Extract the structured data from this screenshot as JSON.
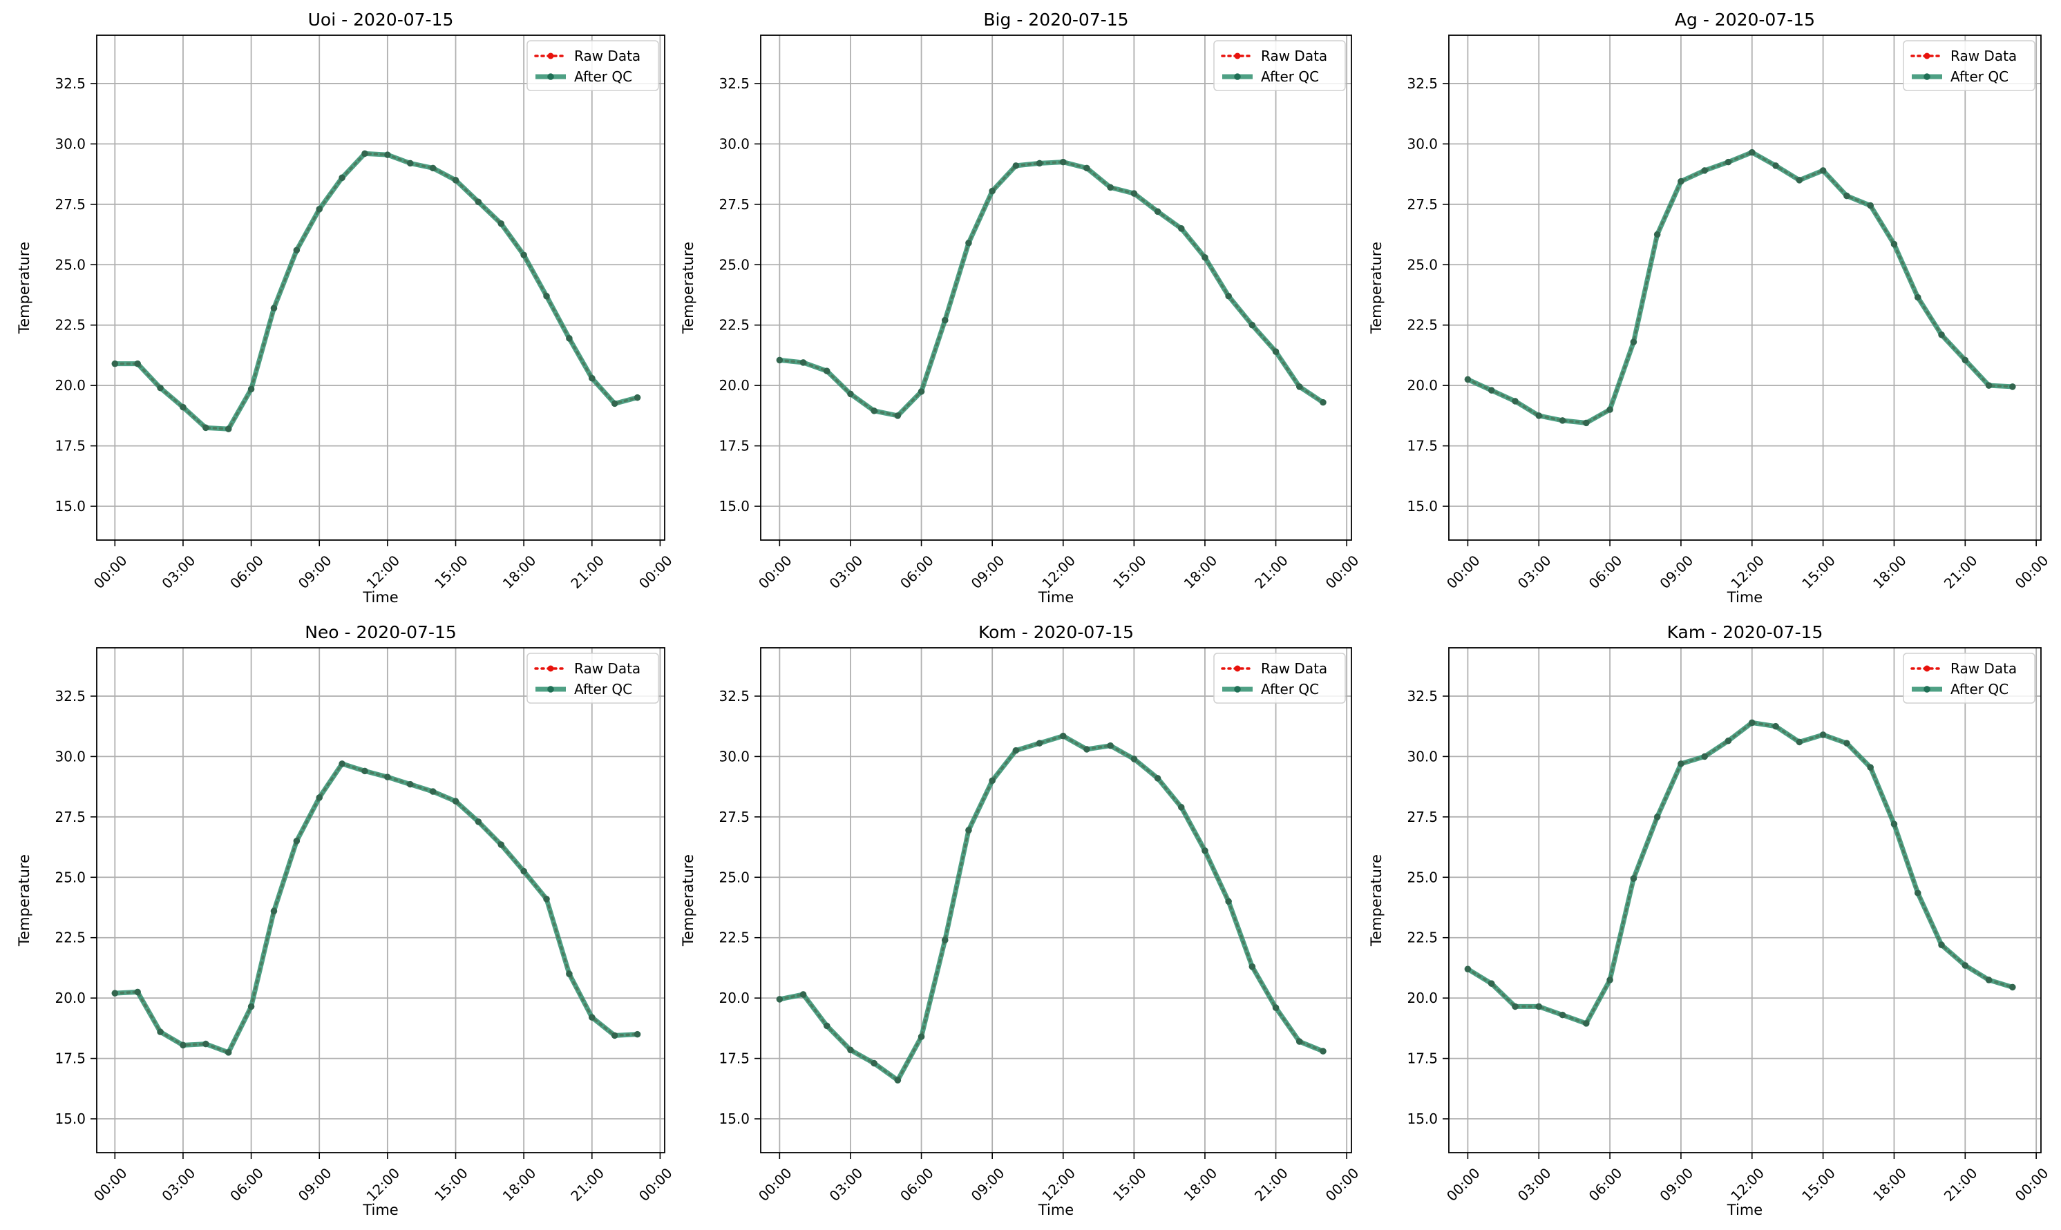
{
  "figure": {
    "legend_labels": [
      "Raw Data",
      "After QC"
    ],
    "colors": {
      "raw": "#e8120c",
      "qc": "#2f8f6e",
      "qc_marker": "#1f6f55",
      "grid": "#b0b0b0"
    }
  },
  "chart_data": [
    {
      "type": "line",
      "title": "Uoi - 2020-07-15",
      "xlabel": "Time",
      "ylabel": "Temperature",
      "x": [
        "00:00",
        "01:00",
        "02:00",
        "03:00",
        "04:00",
        "05:00",
        "06:00",
        "07:00",
        "08:00",
        "09:00",
        "10:00",
        "11:00",
        "12:00",
        "13:00",
        "14:00",
        "15:00",
        "16:00",
        "17:00",
        "18:00",
        "19:00",
        "20:00",
        "21:00",
        "22:00",
        "23:00"
      ],
      "x_tick_labels": [
        "00:00",
        "03:00",
        "06:00",
        "09:00",
        "12:00",
        "15:00",
        "18:00",
        "21:00",
        "00:00"
      ],
      "y_ticks": [
        15.0,
        17.5,
        20.0,
        22.5,
        25.0,
        27.5,
        30.0,
        32.5
      ],
      "ylim": [
        13.6,
        34.5
      ],
      "xlim_hours": [
        -0.8,
        24.2
      ],
      "grid": true,
      "legend_position": "top-right",
      "series": [
        {
          "name": "Raw Data",
          "values": [
            20.9,
            20.9,
            19.9,
            19.1,
            18.25,
            18.2,
            19.85,
            23.2,
            25.6,
            27.3,
            28.6,
            29.6,
            29.55,
            29.2,
            29.0,
            28.5,
            27.6,
            26.7,
            25.4,
            23.7,
            21.95,
            20.3,
            19.25,
            19.5
          ]
        },
        {
          "name": "After QC",
          "values": [
            20.9,
            20.9,
            19.9,
            19.1,
            18.25,
            18.2,
            19.85,
            23.2,
            25.6,
            27.3,
            28.6,
            29.6,
            29.55,
            29.2,
            29.0,
            28.5,
            27.6,
            26.7,
            25.4,
            23.7,
            21.95,
            20.3,
            19.25,
            19.5
          ]
        }
      ]
    },
    {
      "type": "line",
      "title": "Big - 2020-07-15",
      "xlabel": "Time",
      "ylabel": "Temperature",
      "x": [
        "00:00",
        "01:00",
        "02:00",
        "03:00",
        "04:00",
        "05:00",
        "06:00",
        "07:00",
        "08:00",
        "09:00",
        "10:00",
        "11:00",
        "12:00",
        "13:00",
        "14:00",
        "15:00",
        "16:00",
        "17:00",
        "18:00",
        "19:00",
        "20:00",
        "21:00",
        "22:00",
        "23:00"
      ],
      "x_tick_labels": [
        "00:00",
        "03:00",
        "06:00",
        "09:00",
        "12:00",
        "15:00",
        "18:00",
        "21:00",
        "00:00"
      ],
      "y_ticks": [
        15.0,
        17.5,
        20.0,
        22.5,
        25.0,
        27.5,
        30.0,
        32.5
      ],
      "ylim": [
        13.6,
        34.5
      ],
      "xlim_hours": [
        -0.8,
        24.2
      ],
      "grid": true,
      "legend_position": "top-right",
      "series": [
        {
          "name": "Raw Data",
          "values": [
            21.05,
            20.95,
            20.6,
            19.65,
            18.95,
            18.75,
            19.75,
            22.7,
            25.9,
            28.05,
            29.1,
            29.2,
            29.25,
            29.0,
            28.2,
            27.95,
            27.2,
            26.5,
            25.3,
            23.7,
            22.5,
            21.4,
            19.95,
            19.3
          ]
        },
        {
          "name": "After QC",
          "values": [
            21.05,
            20.95,
            20.6,
            19.65,
            18.95,
            18.75,
            19.75,
            22.7,
            25.9,
            28.05,
            29.1,
            29.2,
            29.25,
            29.0,
            28.2,
            27.95,
            27.2,
            26.5,
            25.3,
            23.7,
            22.5,
            21.4,
            19.95,
            19.3
          ]
        }
      ]
    },
    {
      "type": "line",
      "title": "Ag - 2020-07-15",
      "xlabel": "Time",
      "ylabel": "Temperature",
      "x": [
        "00:00",
        "01:00",
        "02:00",
        "03:00",
        "04:00",
        "05:00",
        "06:00",
        "07:00",
        "08:00",
        "09:00",
        "10:00",
        "11:00",
        "12:00",
        "13:00",
        "14:00",
        "15:00",
        "16:00",
        "17:00",
        "18:00",
        "19:00",
        "20:00",
        "21:00",
        "22:00",
        "23:00"
      ],
      "x_tick_labels": [
        "00:00",
        "03:00",
        "06:00",
        "09:00",
        "12:00",
        "15:00",
        "18:00",
        "21:00",
        "00:00"
      ],
      "y_ticks": [
        15.0,
        17.5,
        20.0,
        22.5,
        25.0,
        27.5,
        30.0,
        32.5
      ],
      "ylim": [
        13.6,
        34.5
      ],
      "xlim_hours": [
        -0.8,
        24.2
      ],
      "grid": true,
      "legend_position": "top-right",
      "series": [
        {
          "name": "Raw Data",
          "values": [
            20.25,
            19.8,
            19.35,
            18.75,
            18.55,
            18.45,
            19.0,
            21.8,
            26.25,
            28.45,
            28.9,
            29.25,
            29.65,
            29.1,
            28.5,
            28.9,
            27.85,
            27.45,
            25.85,
            23.65,
            22.1,
            21.05,
            20.0,
            19.95
          ]
        },
        {
          "name": "After QC",
          "values": [
            20.25,
            19.8,
            19.35,
            18.75,
            18.55,
            18.45,
            19.0,
            21.8,
            26.25,
            28.45,
            28.9,
            29.25,
            29.65,
            29.1,
            28.5,
            28.9,
            27.85,
            27.45,
            25.85,
            23.65,
            22.1,
            21.05,
            20.0,
            19.95
          ]
        }
      ]
    },
    {
      "type": "line",
      "title": "Neo - 2020-07-15",
      "xlabel": "Time",
      "ylabel": "Temperature",
      "x": [
        "00:00",
        "01:00",
        "02:00",
        "03:00",
        "04:00",
        "05:00",
        "06:00",
        "07:00",
        "08:00",
        "09:00",
        "10:00",
        "11:00",
        "12:00",
        "13:00",
        "14:00",
        "15:00",
        "16:00",
        "17:00",
        "18:00",
        "19:00",
        "20:00",
        "21:00",
        "22:00",
        "23:00"
      ],
      "x_tick_labels": [
        "00:00",
        "03:00",
        "06:00",
        "09:00",
        "12:00",
        "15:00",
        "18:00",
        "21:00",
        "00:00"
      ],
      "y_ticks": [
        15.0,
        17.5,
        20.0,
        22.5,
        25.0,
        27.5,
        30.0,
        32.5
      ],
      "ylim": [
        13.6,
        34.5
      ],
      "xlim_hours": [
        -0.8,
        24.2
      ],
      "grid": true,
      "legend_position": "top-right",
      "series": [
        {
          "name": "Raw Data",
          "values": [
            20.2,
            20.25,
            18.6,
            18.05,
            18.1,
            17.75,
            19.65,
            23.6,
            26.5,
            28.3,
            29.7,
            29.4,
            29.15,
            28.85,
            28.55,
            28.15,
            27.3,
            26.35,
            25.25,
            24.1,
            21.0,
            19.2,
            18.45,
            18.5
          ]
        },
        {
          "name": "After QC",
          "values": [
            20.2,
            20.25,
            18.6,
            18.05,
            18.1,
            17.75,
            19.65,
            23.6,
            26.5,
            28.3,
            29.7,
            29.4,
            29.15,
            28.85,
            28.55,
            28.15,
            27.3,
            26.35,
            25.25,
            24.1,
            21.0,
            19.2,
            18.45,
            18.5
          ]
        }
      ]
    },
    {
      "type": "line",
      "title": "Kom - 2020-07-15",
      "xlabel": "Time",
      "ylabel": "Temperature",
      "x": [
        "00:00",
        "01:00",
        "02:00",
        "03:00",
        "04:00",
        "05:00",
        "06:00",
        "07:00",
        "08:00",
        "09:00",
        "10:00",
        "11:00",
        "12:00",
        "13:00",
        "14:00",
        "15:00",
        "16:00",
        "17:00",
        "18:00",
        "19:00",
        "20:00",
        "21:00",
        "22:00",
        "23:00"
      ],
      "x_tick_labels": [
        "00:00",
        "03:00",
        "06:00",
        "09:00",
        "12:00",
        "15:00",
        "18:00",
        "21:00",
        "00:00"
      ],
      "y_ticks": [
        15.0,
        17.5,
        20.0,
        22.5,
        25.0,
        27.5,
        30.0,
        32.5
      ],
      "ylim": [
        13.6,
        34.5
      ],
      "xlim_hours": [
        -0.8,
        24.2
      ],
      "grid": true,
      "legend_position": "top-right",
      "series": [
        {
          "name": "Raw Data",
          "values": [
            19.95,
            20.15,
            18.85,
            17.85,
            17.3,
            16.6,
            18.4,
            22.4,
            26.95,
            29.0,
            30.25,
            30.55,
            30.85,
            30.3,
            30.45,
            29.9,
            29.1,
            27.9,
            26.1,
            24.0,
            21.3,
            19.6,
            18.2,
            17.8
          ]
        },
        {
          "name": "After QC",
          "values": [
            19.95,
            20.15,
            18.85,
            17.85,
            17.3,
            16.6,
            18.4,
            22.4,
            26.95,
            29.0,
            30.25,
            30.55,
            30.85,
            30.3,
            30.45,
            29.9,
            29.1,
            27.9,
            26.1,
            24.0,
            21.3,
            19.6,
            18.2,
            17.8
          ]
        }
      ]
    },
    {
      "type": "line",
      "title": "Kam - 2020-07-15",
      "xlabel": "Time",
      "ylabel": "Temperature",
      "x": [
        "00:00",
        "01:00",
        "02:00",
        "03:00",
        "04:00",
        "05:00",
        "06:00",
        "07:00",
        "08:00",
        "09:00",
        "10:00",
        "11:00",
        "12:00",
        "13:00",
        "14:00",
        "15:00",
        "16:00",
        "17:00",
        "18:00",
        "19:00",
        "20:00",
        "21:00",
        "22:00",
        "23:00"
      ],
      "x_tick_labels": [
        "00:00",
        "03:00",
        "06:00",
        "09:00",
        "12:00",
        "15:00",
        "18:00",
        "21:00",
        "00:00"
      ],
      "y_ticks": [
        15.0,
        17.5,
        20.0,
        22.5,
        25.0,
        27.5,
        30.0,
        32.5
      ],
      "ylim": [
        13.6,
        34.5
      ],
      "xlim_hours": [
        -0.8,
        24.2
      ],
      "grid": true,
      "legend_position": "top-right",
      "series": [
        {
          "name": "Raw Data",
          "values": [
            21.2,
            20.6,
            19.65,
            19.65,
            19.3,
            18.95,
            20.75,
            24.95,
            27.5,
            29.7,
            30.0,
            30.65,
            31.4,
            31.25,
            30.6,
            30.9,
            30.55,
            29.55,
            27.2,
            24.35,
            22.2,
            21.35,
            20.75,
            20.45
          ]
        },
        {
          "name": "After QC",
          "values": [
            21.2,
            20.6,
            19.65,
            19.65,
            19.3,
            18.95,
            20.75,
            24.95,
            27.5,
            29.7,
            30.0,
            30.65,
            31.4,
            31.25,
            30.6,
            30.9,
            30.55,
            29.55,
            27.2,
            24.35,
            22.2,
            21.35,
            20.75,
            20.45
          ]
        }
      ]
    }
  ]
}
